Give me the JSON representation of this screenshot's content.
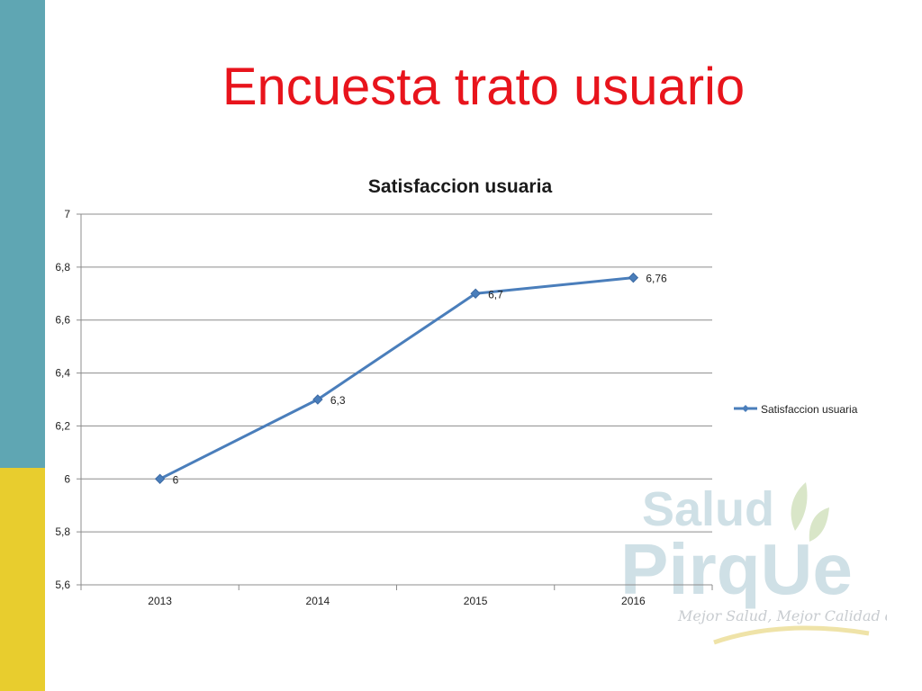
{
  "slide": {
    "title": "Encuesta trato usuario"
  },
  "colors": {
    "side_bar_top": "#5fa6b3",
    "side_bar_bottom": "#e8cd2e",
    "title": "#e8141c",
    "series": "#4a7ebb",
    "watermark_text": "#cfe0e6"
  },
  "watermark": {
    "line1": "Salud",
    "line2": "PirqUe",
    "tagline": "Mejor Salud, Mejor Calidad de Vida."
  },
  "chart_data": {
    "type": "line",
    "title": "Satisfaccion usuaria",
    "categories": [
      "2013",
      "2014",
      "2015",
      "2016"
    ],
    "series": [
      {
        "name": "Satisfaccion usuaria",
        "values": [
          6,
          6.3,
          6.7,
          6.76
        ],
        "labels": [
          "6",
          "6,3",
          "6,7",
          "6,76"
        ]
      }
    ],
    "ylim": [
      5.6,
      7
    ],
    "yticks": [
      "5,6",
      "5,8",
      "6",
      "6,2",
      "6,4",
      "6,6",
      "6,8",
      "7"
    ],
    "grid": true,
    "legend": "right",
    "marker": "diamond"
  }
}
